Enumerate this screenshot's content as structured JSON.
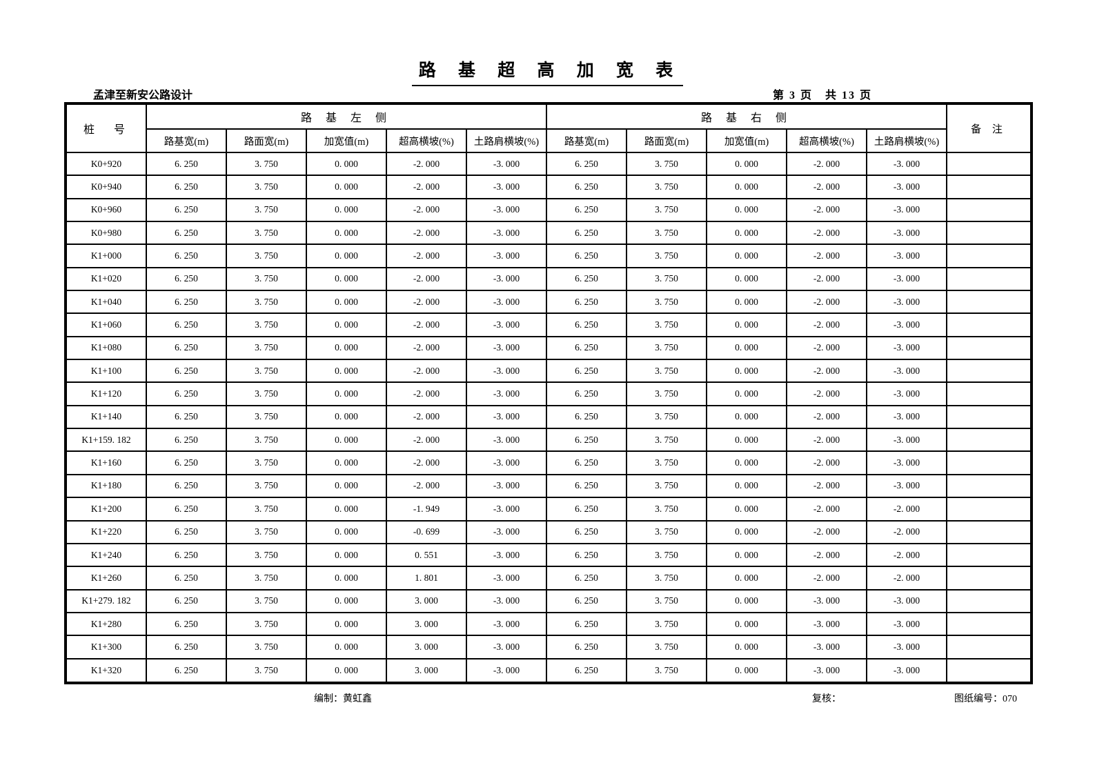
{
  "page": {
    "title": "路 基 超 高 加 宽 表",
    "project": "孟津至新安公路设计",
    "page_info": "第 3 页　共 13 页",
    "footer": {
      "prepared": "编制：黄虹鑫",
      "checked": "复核：",
      "drawing_no": "图纸编号：070"
    }
  },
  "table": {
    "corner_header": "桩　号",
    "left_group_header": "路 基 左 侧",
    "right_group_header": "路 基 右 侧",
    "remark_header": "备 注",
    "sub_headers": [
      "路基宽(m)",
      "路面宽(m)",
      "加宽值(m)",
      "超高横坡(%)",
      "土路肩横坡(%)"
    ],
    "rows": [
      {
        "station": "K0+920",
        "left": [
          "6. 250",
          "3. 750",
          "0. 000",
          "-2. 000",
          "-3. 000"
        ],
        "right": [
          "6. 250",
          "3. 750",
          "0. 000",
          "-2. 000",
          "-3. 000"
        ],
        "remark": ""
      },
      {
        "station": "K0+940",
        "left": [
          "6. 250",
          "3. 750",
          "0. 000",
          "-2. 000",
          "-3. 000"
        ],
        "right": [
          "6. 250",
          "3. 750",
          "0. 000",
          "-2. 000",
          "-3. 000"
        ],
        "remark": ""
      },
      {
        "station": "K0+960",
        "left": [
          "6. 250",
          "3. 750",
          "0. 000",
          "-2. 000",
          "-3. 000"
        ],
        "right": [
          "6. 250",
          "3. 750",
          "0. 000",
          "-2. 000",
          "-3. 000"
        ],
        "remark": ""
      },
      {
        "station": "K0+980",
        "left": [
          "6. 250",
          "3. 750",
          "0. 000",
          "-2. 000",
          "-3. 000"
        ],
        "right": [
          "6. 250",
          "3. 750",
          "0. 000",
          "-2. 000",
          "-3. 000"
        ],
        "remark": ""
      },
      {
        "station": "K1+000",
        "left": [
          "6. 250",
          "3. 750",
          "0. 000",
          "-2. 000",
          "-3. 000"
        ],
        "right": [
          "6. 250",
          "3. 750",
          "0. 000",
          "-2. 000",
          "-3. 000"
        ],
        "remark": ""
      },
      {
        "station": "K1+020",
        "left": [
          "6. 250",
          "3. 750",
          "0. 000",
          "-2. 000",
          "-3. 000"
        ],
        "right": [
          "6. 250",
          "3. 750",
          "0. 000",
          "-2. 000",
          "-3. 000"
        ],
        "remark": ""
      },
      {
        "station": "K1+040",
        "left": [
          "6. 250",
          "3. 750",
          "0. 000",
          "-2. 000",
          "-3. 000"
        ],
        "right": [
          "6. 250",
          "3. 750",
          "0. 000",
          "-2. 000",
          "-3. 000"
        ],
        "remark": ""
      },
      {
        "station": "K1+060",
        "left": [
          "6. 250",
          "3. 750",
          "0. 000",
          "-2. 000",
          "-3. 000"
        ],
        "right": [
          "6. 250",
          "3. 750",
          "0. 000",
          "-2. 000",
          "-3. 000"
        ],
        "remark": ""
      },
      {
        "station": "K1+080",
        "left": [
          "6. 250",
          "3. 750",
          "0. 000",
          "-2. 000",
          "-3. 000"
        ],
        "right": [
          "6. 250",
          "3. 750",
          "0. 000",
          "-2. 000",
          "-3. 000"
        ],
        "remark": ""
      },
      {
        "station": "K1+100",
        "left": [
          "6. 250",
          "3. 750",
          "0. 000",
          "-2. 000",
          "-3. 000"
        ],
        "right": [
          "6. 250",
          "3. 750",
          "0. 000",
          "-2. 000",
          "-3. 000"
        ],
        "remark": ""
      },
      {
        "station": "K1+120",
        "left": [
          "6. 250",
          "3. 750",
          "0. 000",
          "-2. 000",
          "-3. 000"
        ],
        "right": [
          "6. 250",
          "3. 750",
          "0. 000",
          "-2. 000",
          "-3. 000"
        ],
        "remark": ""
      },
      {
        "station": "K1+140",
        "left": [
          "6. 250",
          "3. 750",
          "0. 000",
          "-2. 000",
          "-3. 000"
        ],
        "right": [
          "6. 250",
          "3. 750",
          "0. 000",
          "-2. 000",
          "-3. 000"
        ],
        "remark": ""
      },
      {
        "station": "K1+159. 182",
        "left": [
          "6. 250",
          "3. 750",
          "0. 000",
          "-2. 000",
          "-3. 000"
        ],
        "right": [
          "6. 250",
          "3. 750",
          "0. 000",
          "-2. 000",
          "-3. 000"
        ],
        "remark": ""
      },
      {
        "station": "K1+160",
        "left": [
          "6. 250",
          "3. 750",
          "0. 000",
          "-2. 000",
          "-3. 000"
        ],
        "right": [
          "6. 250",
          "3. 750",
          "0. 000",
          "-2. 000",
          "-3. 000"
        ],
        "remark": ""
      },
      {
        "station": "K1+180",
        "left": [
          "6. 250",
          "3. 750",
          "0. 000",
          "-2. 000",
          "-3. 000"
        ],
        "right": [
          "6. 250",
          "3. 750",
          "0. 000",
          "-2. 000",
          "-3. 000"
        ],
        "remark": ""
      },
      {
        "station": "K1+200",
        "left": [
          "6. 250",
          "3. 750",
          "0. 000",
          "-1. 949",
          "-3. 000"
        ],
        "right": [
          "6. 250",
          "3. 750",
          "0. 000",
          "-2. 000",
          "-2. 000"
        ],
        "remark": ""
      },
      {
        "station": "K1+220",
        "left": [
          "6. 250",
          "3. 750",
          "0. 000",
          "-0. 699",
          "-3. 000"
        ],
        "right": [
          "6. 250",
          "3. 750",
          "0. 000",
          "-2. 000",
          "-2. 000"
        ],
        "remark": ""
      },
      {
        "station": "K1+240",
        "left": [
          "6. 250",
          "3. 750",
          "0. 000",
          "0. 551",
          "-3. 000"
        ],
        "right": [
          "6. 250",
          "3. 750",
          "0. 000",
          "-2. 000",
          "-2. 000"
        ],
        "remark": ""
      },
      {
        "station": "K1+260",
        "left": [
          "6. 250",
          "3. 750",
          "0. 000",
          "1. 801",
          "-3. 000"
        ],
        "right": [
          "6. 250",
          "3. 750",
          "0. 000",
          "-2. 000",
          "-2. 000"
        ],
        "remark": ""
      },
      {
        "station": "K1+279. 182",
        "left": [
          "6. 250",
          "3. 750",
          "0. 000",
          "3. 000",
          "-3. 000"
        ],
        "right": [
          "6. 250",
          "3. 750",
          "0. 000",
          "-3. 000",
          "-3. 000"
        ],
        "remark": ""
      },
      {
        "station": "K1+280",
        "left": [
          "6. 250",
          "3. 750",
          "0. 000",
          "3. 000",
          "-3. 000"
        ],
        "right": [
          "6. 250",
          "3. 750",
          "0. 000",
          "-3. 000",
          "-3. 000"
        ],
        "remark": ""
      },
      {
        "station": "K1+300",
        "left": [
          "6. 250",
          "3. 750",
          "0. 000",
          "3. 000",
          "-3. 000"
        ],
        "right": [
          "6. 250",
          "3. 750",
          "0. 000",
          "-3. 000",
          "-3. 000"
        ],
        "remark": ""
      },
      {
        "station": "K1+320",
        "left": [
          "6. 250",
          "3. 750",
          "0. 000",
          "3. 000",
          "-3. 000"
        ],
        "right": [
          "6. 250",
          "3. 750",
          "0. 000",
          "-3. 000",
          "-3. 000"
        ],
        "remark": ""
      }
    ]
  }
}
